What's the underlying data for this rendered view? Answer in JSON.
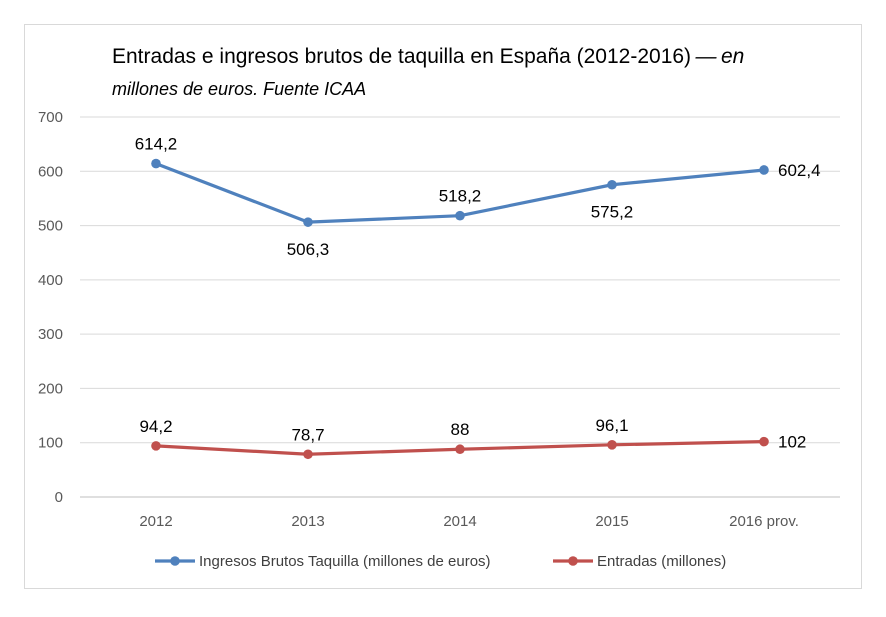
{
  "chart_data": {
    "type": "line",
    "title": "Entradas e ingresos brutos de taquilla en España (2012-2016)",
    "title_separator": "—",
    "subtitle_inline": "en",
    "subtitle": "millones de euros. Fuente ICAA",
    "categories": [
      "2012",
      "2013",
      "2014",
      "2015",
      "2016 prov."
    ],
    "ylim": [
      0,
      700
    ],
    "yticks": [
      0,
      100,
      200,
      300,
      400,
      500,
      600,
      700
    ],
    "grid": true,
    "legend_position": "bottom",
    "series": [
      {
        "name": "Ingresos Brutos Taquilla (millones de euros)",
        "color": "#4f81bd",
        "values": [
          614.2,
          506.3,
          518.2,
          575.2,
          602.4
        ],
        "labels": [
          "614,2",
          "506,3",
          "518,2",
          "575,2",
          "602,4"
        ],
        "label_positions": [
          "above",
          "below",
          "above",
          "below",
          "right"
        ]
      },
      {
        "name": "Entradas (millones)",
        "color": "#c0504d",
        "values": [
          94.2,
          78.7,
          88,
          96.1,
          102
        ],
        "labels": [
          "94,2",
          "78,7",
          "88",
          "96,1",
          "102"
        ],
        "label_positions": [
          "above",
          "above",
          "above",
          "above",
          "right"
        ]
      }
    ]
  }
}
